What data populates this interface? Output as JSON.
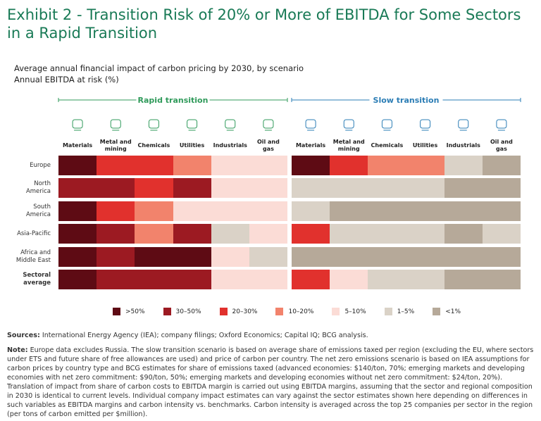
{
  "chart_data": {
    "type": "heatmap",
    "title": "Exhibit 2 - Transition Risk of 20% or More of EBITDA for Some Sectors in a Rapid Transition",
    "subtitle": [
      "Average annual financial impact of carbon pricing by 2030, by scenario",
      "Annual EBITDA at risk (%)"
    ],
    "columns": [
      [
        "Materials"
      ],
      [
        "Metal and",
        "mining"
      ],
      [
        "Chemicals"
      ],
      [
        "Utilities"
      ],
      [
        "Industrials"
      ],
      [
        "Oil and",
        "gas"
      ]
    ],
    "rows": [
      [
        "Europe"
      ],
      [
        "North",
        "America"
      ],
      [
        "South",
        "America"
      ],
      [
        "Asia-Pacific"
      ],
      [
        "Africa and",
        "Middle East"
      ],
      [
        "Sectoral",
        "average"
      ]
    ],
    "legend": [
      {
        "label": ">50%",
        "color": "#5e0b14"
      },
      {
        "label": "30–50%",
        "color": "#9c1a22"
      },
      {
        "label": "20–30%",
        "color": "#e1312d"
      },
      {
        "label": "10–20%",
        "color": "#f2836c"
      },
      {
        "label": "5–10%",
        "color": "#fbdcd6"
      },
      {
        "label": "1–5%",
        "color": "#dad2c7"
      },
      {
        "label": "<1%",
        "color": "#b6a999"
      }
    ],
    "panels": [
      {
        "name": "Rapid transition",
        "color": "#2f9a5a",
        "levels": [
          [
            0,
            2,
            2,
            3,
            4,
            4
          ],
          [
            1,
            1,
            2,
            1,
            4,
            4
          ],
          [
            0,
            2,
            3,
            4,
            4,
            4
          ],
          [
            0,
            1,
            3,
            1,
            5,
            4
          ],
          [
            0,
            1,
            0,
            0,
            4,
            5
          ],
          [
            0,
            1,
            1,
            1,
            4,
            4
          ]
        ]
      },
      {
        "name": "Slow transition",
        "color": "#2b7db5",
        "levels": [
          [
            0,
            2,
            3,
            3,
            5,
            6
          ],
          [
            5,
            5,
            5,
            5,
            6,
            6
          ],
          [
            5,
            6,
            6,
            6,
            6,
            6
          ],
          [
            2,
            5,
            5,
            5,
            6,
            5
          ],
          [
            6,
            6,
            6,
            6,
            6,
            6
          ],
          [
            2,
            4,
            5,
            5,
            6,
            6
          ]
        ]
      }
    ]
  },
  "sources": {
    "label": "Sources:",
    "text": "International Energy Agency (IEA); company filings; Oxford Economics; Capital IQ; BCG analysis."
  },
  "note": {
    "label": "Note:",
    "text": "Europe data excludes Russia. The slow transition scenario is based on average share of emissions taxed per region (excluding the EU, where sectors under ETS and future share of free allowances are used) and price of carbon per country. The net zero emissions scenario is based on IEA assumptions for carbon prices by country type and BCG estimates for share of emissions taxed (advanced economies: $140/ton, 70%; emerging markets and developing economies with net zero commitment: $90/ton, 50%; emerging markets and developing economies without net zero commitment: $24/ton, 20%). Translation of impact from share of carbon costs to EBITDA margin is carried out using EBITDA margins, assuming that the sector and regional composition in 2030 is identical to current levels. Individual company impact estimates can vary against the sector estimates shown here depending on differences in such variables as EBITDA margins and carbon intensity vs. benchmarks. Carbon intensity is averaged across the top 25 companies per sector in the region (per tons of carbon emitted per $million)."
  }
}
